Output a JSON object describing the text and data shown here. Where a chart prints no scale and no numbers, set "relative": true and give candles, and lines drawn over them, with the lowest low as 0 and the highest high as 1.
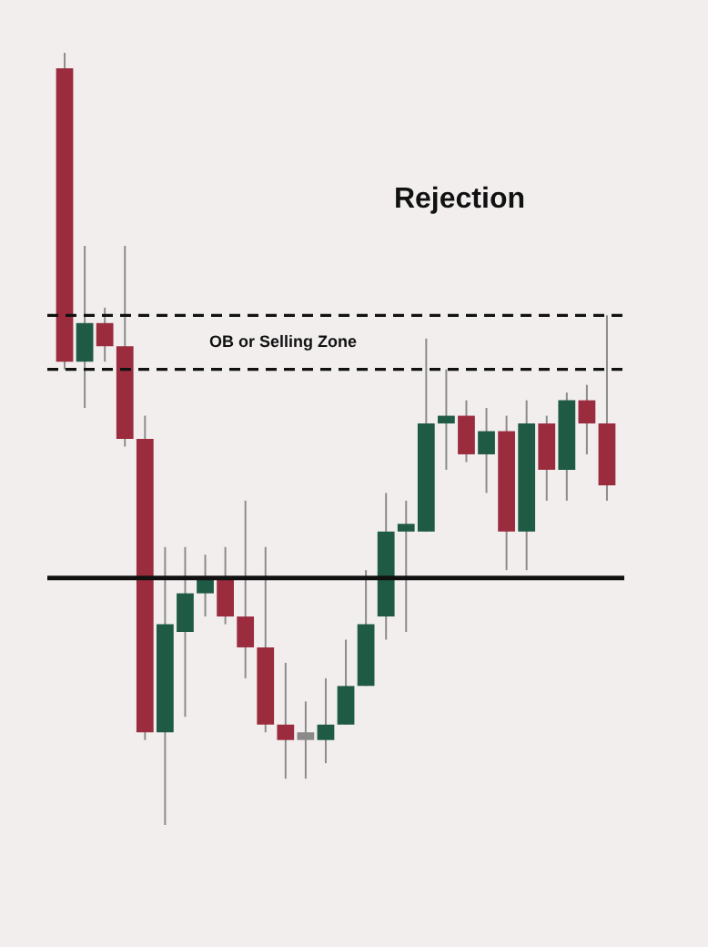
{
  "chart_data": {
    "type": "candlestick",
    "relative": true,
    "categories": [
      null,
      null,
      null,
      null,
      null,
      null,
      null,
      null,
      null,
      null,
      null,
      null,
      null,
      null,
      null,
      null,
      null,
      null,
      null,
      null,
      null,
      null,
      null,
      null,
      null,
      null,
      null,
      null
    ],
    "ohlc": [
      [
        0.98,
        1,
        0.59,
        0.6
      ],
      [
        0.6,
        0.75,
        0.54,
        0.65
      ],
      [
        0.65,
        0.67,
        0.6,
        0.62
      ],
      [
        0.62,
        0.75,
        0.49,
        0.5
      ],
      [
        0.5,
        0.53,
        0.11,
        0.12
      ],
      [
        0.12,
        0.36,
        0,
        0.26
      ],
      [
        0.25,
        0.36,
        0.14,
        0.3
      ],
      [
        0.3,
        0.35,
        0.27,
        0.32
      ],
      [
        0.32,
        0.36,
        0.26,
        0.27
      ],
      [
        0.27,
        0.42,
        0.19,
        0.23
      ],
      [
        0.23,
        0.36,
        0.12,
        0.13
      ],
      [
        0.13,
        0.21,
        0.06,
        0.11
      ],
      [
        0.12,
        0.16,
        0.06,
        0.11
      ],
      [
        0.11,
        0.19,
        0.08,
        0.13
      ],
      [
        0.13,
        0.24,
        0.13,
        0.18
      ],
      [
        0.18,
        0.33,
        0.18,
        0.26
      ],
      [
        0.27,
        0.43,
        0.24,
        0.38
      ],
      [
        0.38,
        0.42,
        0.25,
        0.39
      ],
      [
        0.38,
        0.63,
        0.38,
        0.52
      ],
      [
        0.52,
        0.59,
        0.46,
        0.53
      ],
      [
        0.53,
        0.55,
        0.47,
        0.48
      ],
      [
        0.48,
        0.54,
        0.43,
        0.51
      ],
      [
        0.51,
        0.53,
        0.33,
        0.38
      ],
      [
        0.38,
        0.55,
        0.33,
        0.52
      ],
      [
        0.52,
        0.53,
        0.42,
        0.46
      ],
      [
        0.46,
        0.56,
        0.42,
        0.55
      ],
      [
        0.55,
        0.57,
        0.48,
        0.52
      ],
      [
        0.52,
        0.66,
        0.42,
        0.44
      ]
    ],
    "colors": [
      "#9b2c3e",
      "#1f5a45",
      "#9b2c3e",
      "#9b2c3e",
      "#9b2c3e",
      "#1f5a45",
      "#1f5a45",
      "#1f5a45",
      "#9b2c3e",
      "#9b2c3e",
      "#9b2c3e",
      "#9b2c3e",
      "#8a8a8a",
      "#1f5a45",
      "#1f5a45",
      "#1f5a45",
      "#1f5a45",
      "#1f5a45",
      "#1f5a45",
      "#1f5a45",
      "#9b2c3e",
      "#1f5a45",
      "#9b2c3e",
      "#1f5a45",
      "#9b2c3e",
      "#1f5a45",
      "#9b2c3e",
      "#9b2c3e"
    ],
    "ref_lines": [
      {
        "axis": "y",
        "value": 0.66,
        "line_style": "dashed",
        "color": "#111111"
      },
      {
        "axis": "y",
        "value": 0.59,
        "line_style": "dashed",
        "color": "#111111"
      },
      {
        "axis": "y",
        "value": 0.32,
        "line_style": "solid",
        "color": "#111111"
      }
    ],
    "annotations": [
      "Rejection",
      "OB or Selling Zone"
    ],
    "legend": false
  }
}
